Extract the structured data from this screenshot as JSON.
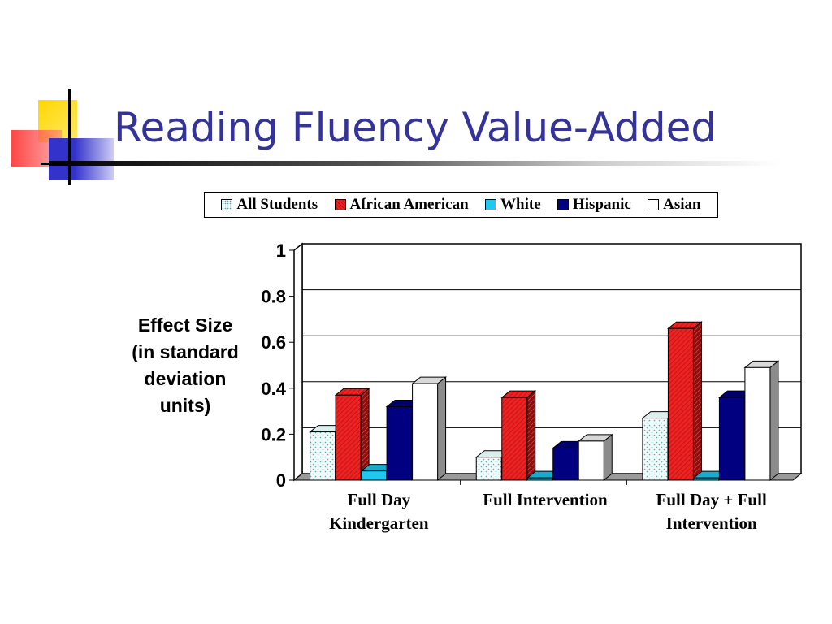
{
  "slide": {
    "title": "Reading Fluency Value-Added"
  },
  "colors": {
    "title": "#333399",
    "accent_yellow": "#ffd700",
    "accent_red": "#ff3333",
    "accent_blue": "#3333cc"
  },
  "chart_data": {
    "type": "bar",
    "ylabel": "Effect Size\n(in standard\ndeviation\nunits)",
    "xlabel": "",
    "ylim": [
      0,
      1
    ],
    "yticks": [
      "0",
      "0.2",
      "0.4",
      "0.6",
      "0.8",
      "1"
    ],
    "grid": true,
    "legend_position": "top",
    "categories": [
      "Full Day\nKindergarten",
      "Full Intervention",
      "Full Day + Full\nIntervention"
    ],
    "series": [
      {
        "name": "All Students",
        "values": [
          0.21,
          0.1,
          0.27
        ],
        "color": "#e8f6f6",
        "style": "dotted"
      },
      {
        "name": "African American",
        "values": [
          0.37,
          0.36,
          0.66
        ],
        "color": "#ee2222",
        "style": "hatched"
      },
      {
        "name": "White",
        "values": [
          0.04,
          0.01,
          0.01
        ],
        "color": "#1ec8f0",
        "style": "solid"
      },
      {
        "name": "Hispanic",
        "values": [
          0.32,
          0.14,
          0.36
        ],
        "color": "#000080",
        "style": "solid"
      },
      {
        "name": "Asian",
        "values": [
          0.42,
          0.17,
          0.49
        ],
        "color": "#ffffff",
        "style": "solid"
      }
    ]
  }
}
